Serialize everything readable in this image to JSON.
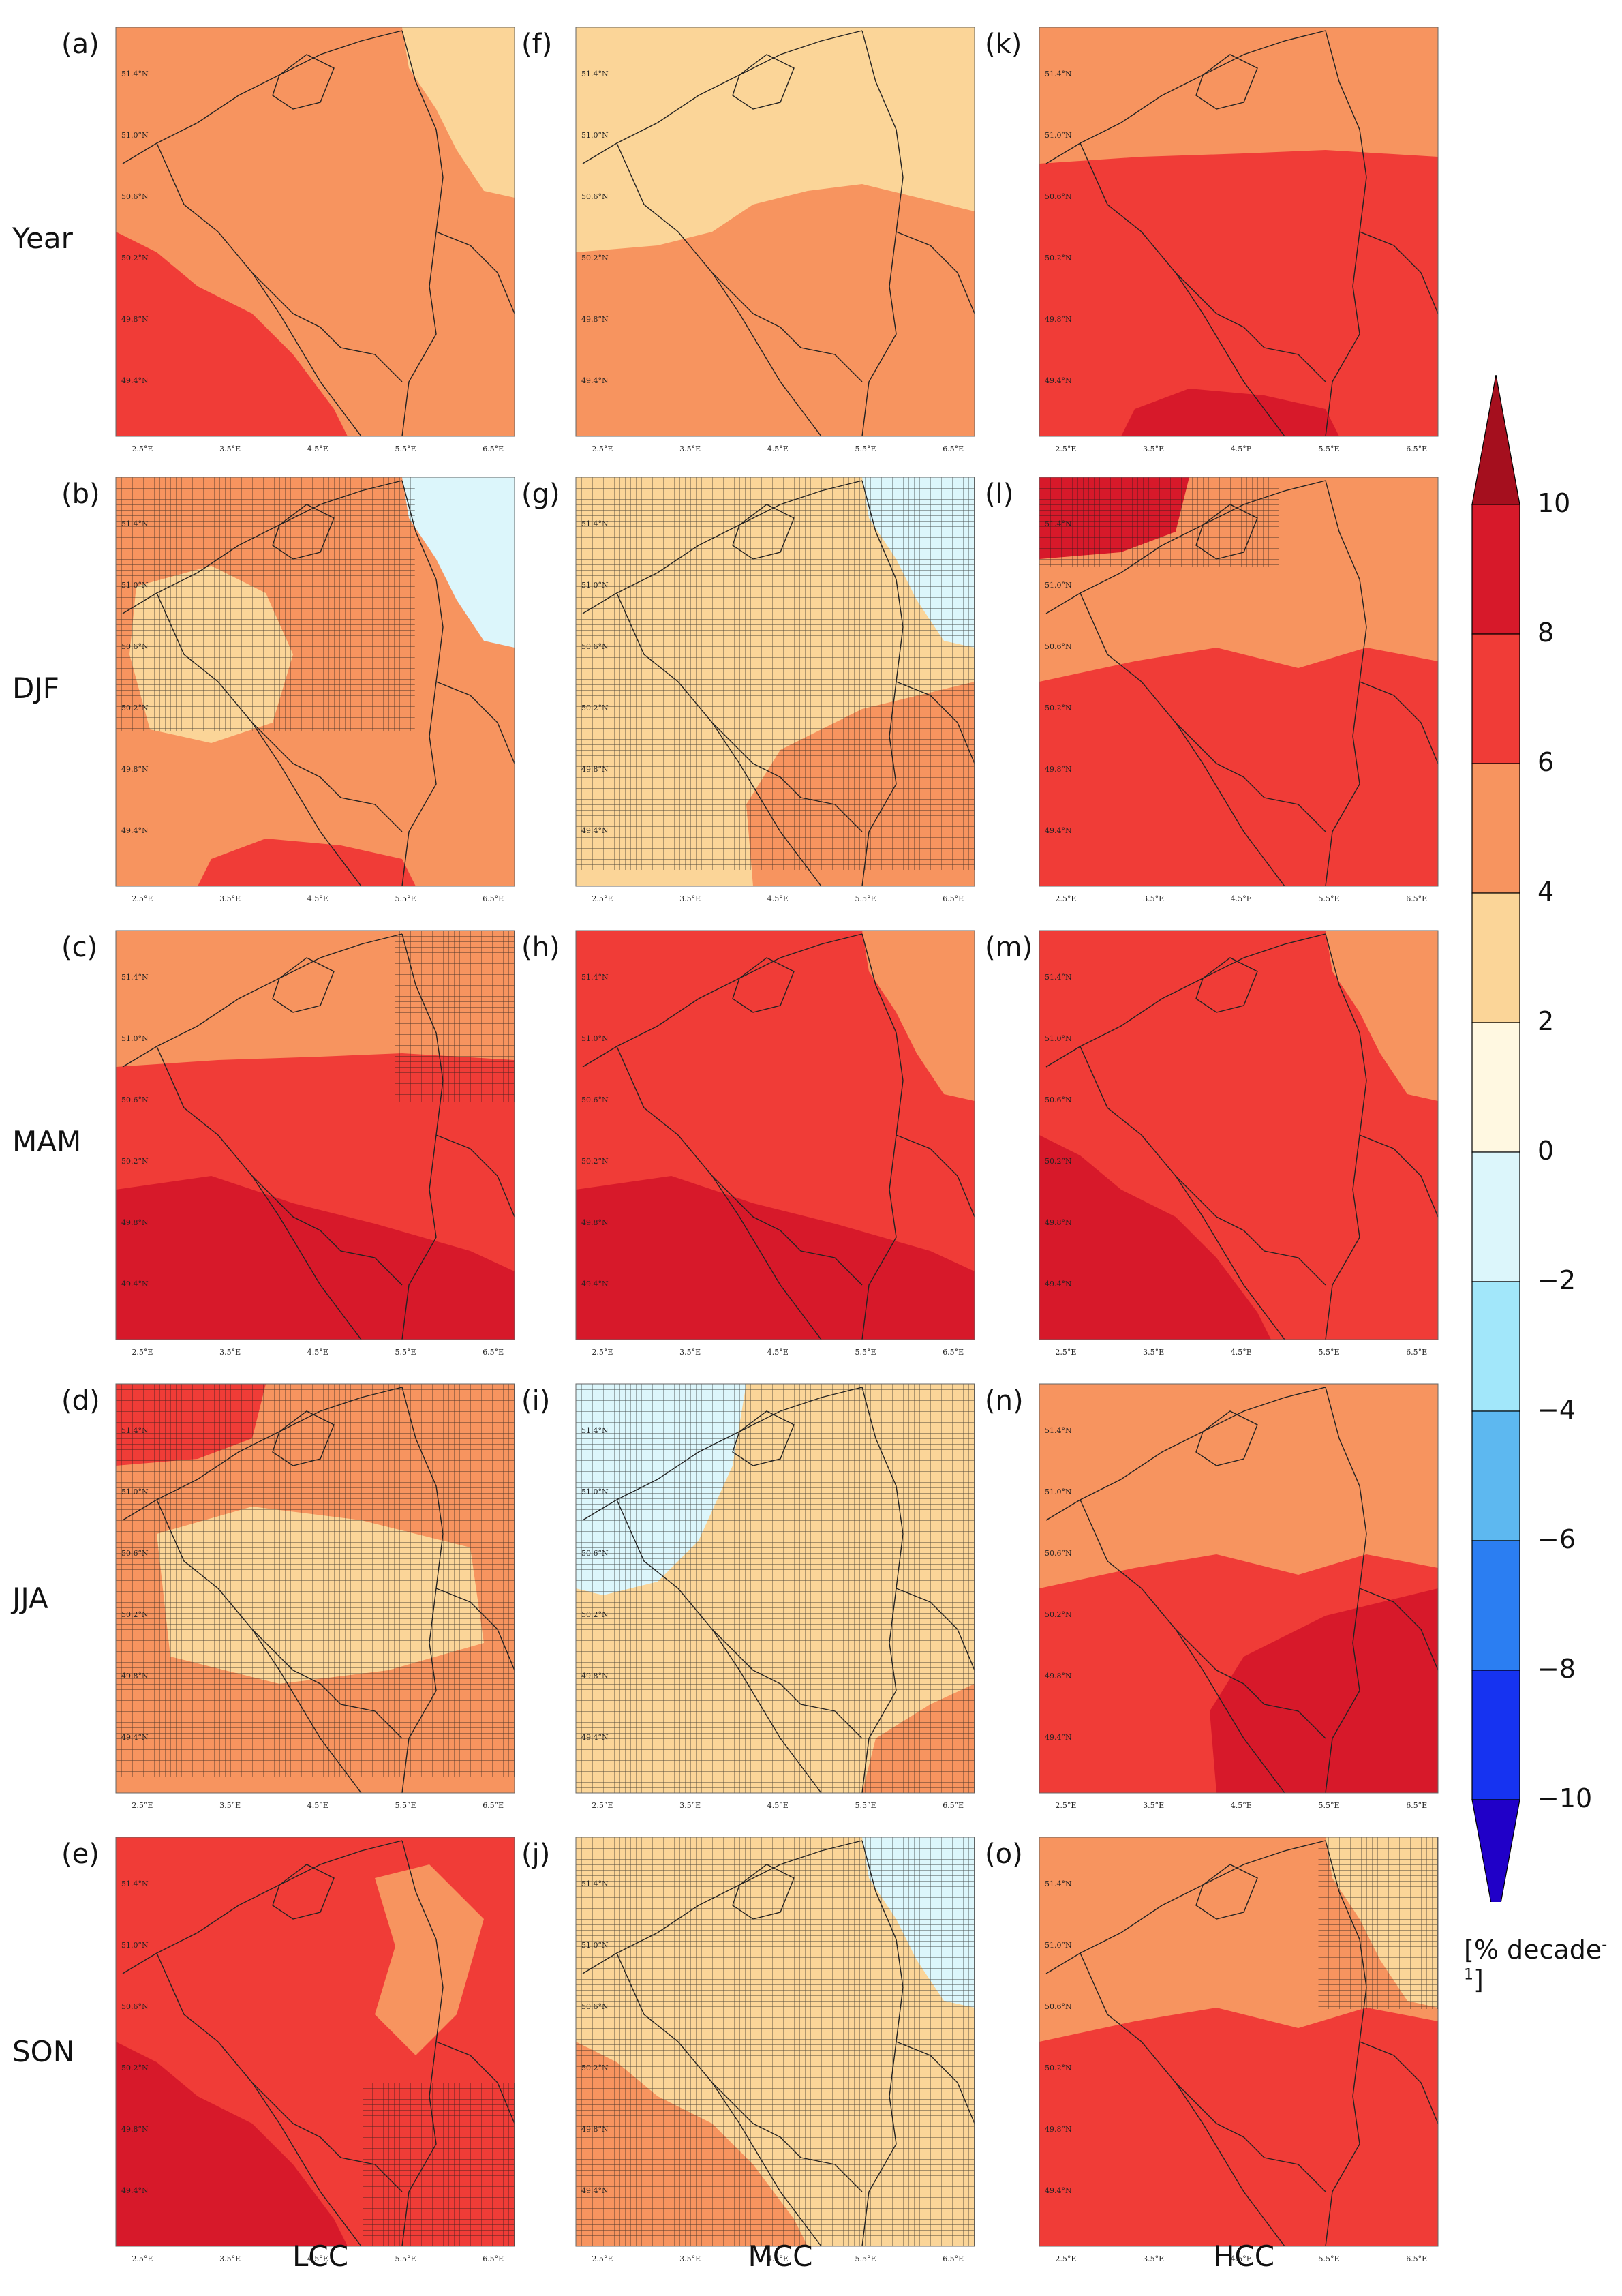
{
  "row_labels": [
    "Year",
    "DJF",
    "MAM",
    "JJA",
    "SON"
  ],
  "column_labels": [
    "LCC",
    "MCC",
    "HCC"
  ],
  "panel_letters": [
    [
      "(a)",
      "(f)",
      "(k)"
    ],
    [
      "(b)",
      "(g)",
      "(l)"
    ],
    [
      "(c)",
      "(h)",
      "(m)"
    ],
    [
      "(d)",
      "(i)",
      "(n)"
    ],
    [
      "(e)",
      "(j)",
      "(o)"
    ]
  ],
  "lat_ticks": [
    "51.4°N",
    "51.0°N",
    "50.6°N",
    "50.2°N",
    "49.8°N",
    "49.4°N"
  ],
  "lon_ticks": [
    "2.5°E",
    "3.5°E",
    "4.5°E",
    "5.5°E",
    "6.5°E"
  ],
  "colorbar": {
    "ticks": [
      "10",
      "8",
      "6",
      "4",
      "2",
      "0",
      "−2",
      "−4",
      "−6",
      "−8",
      "−10"
    ],
    "unit_main": "[% decade",
    "unit_sup": "-1",
    "unit_close": "]",
    "levels": [
      {
        "from": 10,
        "to": 99,
        "color": "#a50f1e"
      },
      {
        "from": 8,
        "to": 10,
        "color": "#d7192a"
      },
      {
        "from": 6,
        "to": 8,
        "color": "#f03c37"
      },
      {
        "from": 4,
        "to": 6,
        "color": "#f7945f"
      },
      {
        "from": 2,
        "to": 4,
        "color": "#fbd598"
      },
      {
        "from": 0,
        "to": 2,
        "color": "#fff8e1"
      },
      {
        "from": -2,
        "to": 0,
        "color": "#dcf6fb"
      },
      {
        "from": -4,
        "to": -2,
        "color": "#a2e7fa"
      },
      {
        "from": -6,
        "to": -4,
        "color": "#5db8f0"
      },
      {
        "from": -8,
        "to": -6,
        "color": "#2b7ef2"
      },
      {
        "from": -10,
        "to": -8,
        "color": "#1633f1"
      },
      {
        "from": -99,
        "to": -10,
        "color": "#2000c8"
      }
    ]
  },
  "map_fields": [
    [
      {
        "base": "#f7945f",
        "regions": [
          {
            "color": "#f03c37",
            "shape": "southwest"
          },
          {
            "color": "#fbd598",
            "shape": "northeast-corner"
          }
        ],
        "hatch": "none"
      },
      {
        "base": "#fbd598",
        "regions": [
          {
            "color": "#f7945f",
            "shape": "south-half"
          }
        ],
        "hatch": "none"
      },
      {
        "base": "#f03c37",
        "regions": [
          {
            "color": "#f7945f",
            "shape": "north-strip"
          },
          {
            "color": "#d7192a",
            "shape": "south-spot"
          }
        ],
        "hatch": "none"
      }
    ],
    [
      {
        "base": "#f7945f",
        "regions": [
          {
            "color": "#fbd598",
            "shape": "center-west"
          },
          {
            "color": "#dcf6fb",
            "shape": "northeast-corner"
          },
          {
            "color": "#f03c37",
            "shape": "south-spot"
          }
        ],
        "hatch": "north-center"
      },
      {
        "base": "#fbd598",
        "regions": [
          {
            "color": "#f7945f",
            "shape": "south-east"
          },
          {
            "color": "#dcf6fb",
            "shape": "northeast-corner"
          }
        ],
        "hatch": "most"
      },
      {
        "base": "#f03c37",
        "regions": [
          {
            "color": "#f7945f",
            "shape": "north-half"
          },
          {
            "color": "#d7192a",
            "shape": "northwest-corner"
          }
        ],
        "hatch": "north-west"
      }
    ],
    [
      {
        "base": "#f03c37",
        "regions": [
          {
            "color": "#f7945f",
            "shape": "north-strip"
          },
          {
            "color": "#d7192a",
            "shape": "south-band"
          }
        ],
        "hatch": "north-east"
      },
      {
        "base": "#f03c37",
        "regions": [
          {
            "color": "#f7945f",
            "shape": "northeast-corner"
          },
          {
            "color": "#d7192a",
            "shape": "south-band"
          }
        ],
        "hatch": "none"
      },
      {
        "base": "#f03c37",
        "regions": [
          {
            "color": "#f7945f",
            "shape": "northeast-corner"
          },
          {
            "color": "#d7192a",
            "shape": "southwest"
          }
        ],
        "hatch": "none"
      }
    ],
    [
      {
        "base": "#f7945f",
        "regions": [
          {
            "color": "#fbd598",
            "shape": "center-band"
          },
          {
            "color": "#f03c37",
            "shape": "northwest-corner"
          }
        ],
        "hatch": "most"
      },
      {
        "base": "#fbd598",
        "regions": [
          {
            "color": "#dcf6fb",
            "shape": "northwest"
          },
          {
            "color": "#f7945f",
            "shape": "southeast-corner"
          }
        ],
        "hatch": "all"
      },
      {
        "base": "#f03c37",
        "regions": [
          {
            "color": "#f7945f",
            "shape": "north-half"
          },
          {
            "color": "#d7192a",
            "shape": "south-east"
          }
        ],
        "hatch": "none"
      }
    ],
    [
      {
        "base": "#f03c37",
        "regions": [
          {
            "color": "#f7945f",
            "shape": "east-patches"
          },
          {
            "color": "#d7192a",
            "shape": "southwest"
          }
        ],
        "hatch": "south-east"
      },
      {
        "base": "#fbd598",
        "regions": [
          {
            "color": "#f7945f",
            "shape": "southwest"
          },
          {
            "color": "#dcf6fb",
            "shape": "northeast-corner"
          }
        ],
        "hatch": "all"
      },
      {
        "base": "#f03c37",
        "regions": [
          {
            "color": "#f7945f",
            "shape": "north-half"
          },
          {
            "color": "#fbd598",
            "shape": "northeast-corner"
          }
        ],
        "hatch": "north-east"
      }
    ]
  ]
}
